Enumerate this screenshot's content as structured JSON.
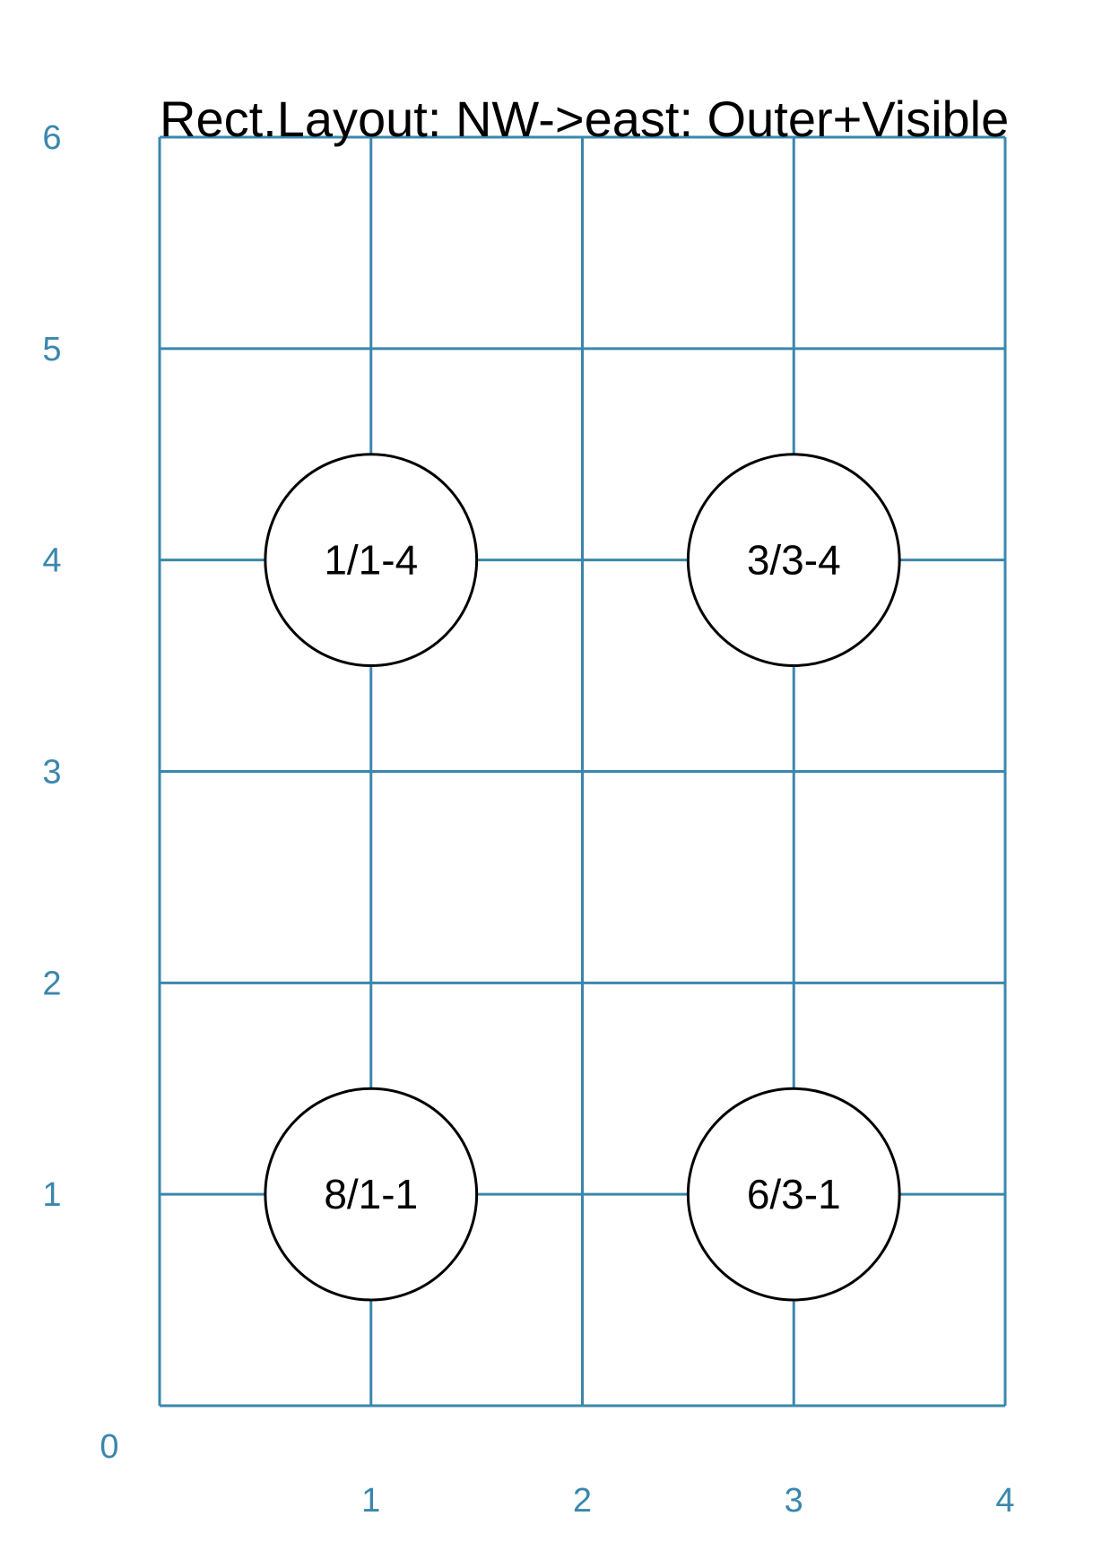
{
  "title": "Rect.Layout: NW->east: Outer+Visible",
  "colors": {
    "grid": "#3a87ad",
    "tick_label": "#3a87ad",
    "node_stroke": "#000000",
    "node_fill": "#ffffff",
    "text": "#000000"
  },
  "grid": {
    "x_range": [
      0,
      4
    ],
    "y_range": [
      0,
      6
    ],
    "x_ticks": [
      {
        "value": 1,
        "label": "1"
      },
      {
        "value": 2,
        "label": "2"
      },
      {
        "value": 3,
        "label": "3"
      },
      {
        "value": 4,
        "label": "4"
      }
    ],
    "y_ticks": [
      {
        "value": 1,
        "label": "1"
      },
      {
        "value": 2,
        "label": "2"
      },
      {
        "value": 3,
        "label": "3"
      },
      {
        "value": 4,
        "label": "4"
      },
      {
        "value": 5,
        "label": "5"
      },
      {
        "value": 6,
        "label": "6"
      }
    ],
    "origin_label": "0"
  },
  "nodes": [
    {
      "label": "1/1-4",
      "x": 1,
      "y": 4,
      "r": 0.5
    },
    {
      "label": "3/3-4",
      "x": 3,
      "y": 4,
      "r": 0.5
    },
    {
      "label": "8/1-1",
      "x": 1,
      "y": 1,
      "r": 0.5
    },
    {
      "label": "6/3-1",
      "x": 3,
      "y": 1,
      "r": 0.5
    }
  ]
}
